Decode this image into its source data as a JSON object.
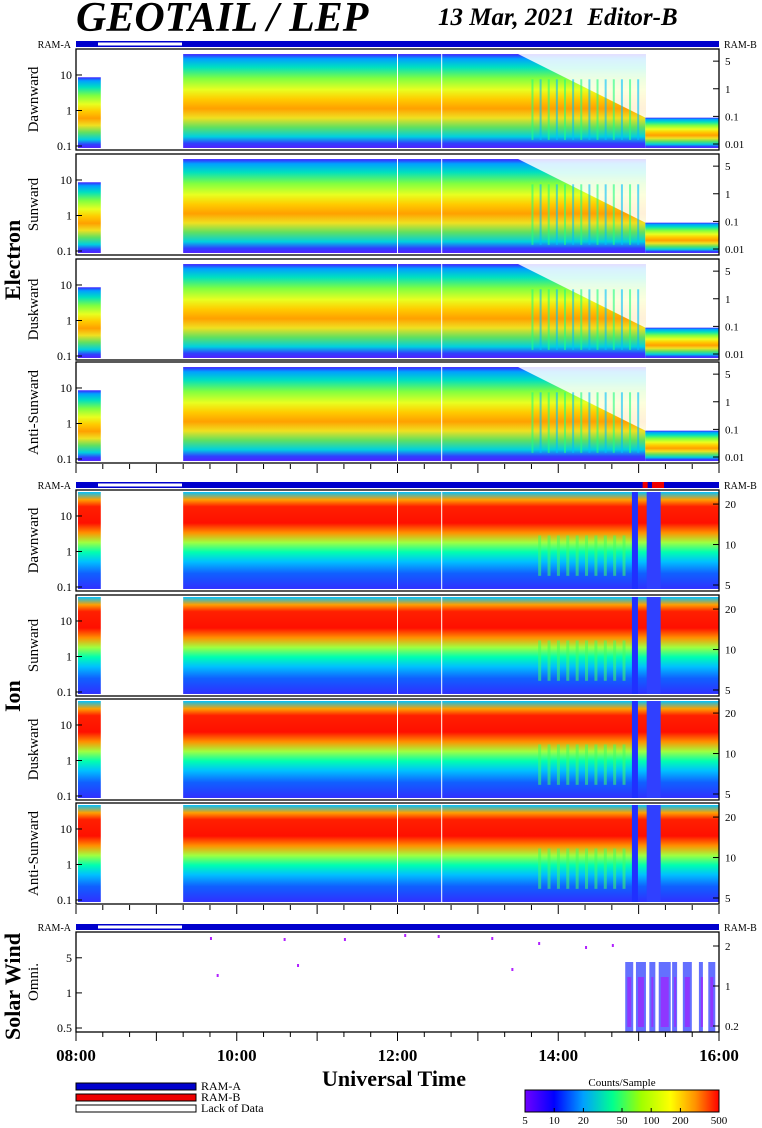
{
  "header": {
    "title": "GEOTAIL / LEP",
    "date": "13 Mar, 2021",
    "editor": "Editor-B"
  },
  "groups": {
    "electron": "Electron",
    "ion": "Ion",
    "solar_wind": "Solar Wind"
  },
  "ram": {
    "a": "RAM-A",
    "b": "RAM-B"
  },
  "panels": {
    "electron": [
      "Dawnward",
      "Sunward",
      "Duskward",
      "Anti-Sunward"
    ],
    "ion": [
      "Dawnward",
      "Sunward",
      "Duskward",
      "Anti-Sunward"
    ],
    "solar_wind": [
      "Omni."
    ]
  },
  "x_axis": {
    "label": "Universal Time",
    "ticks": [
      "08:00",
      "10:00",
      "12:00",
      "14:00",
      "16:00"
    ]
  },
  "legend": {
    "items": [
      {
        "label": "RAM-A",
        "color": "#0000cc"
      },
      {
        "label": "RAM-B",
        "color": "#ee0000"
      },
      {
        "label": "Lack of Data",
        "color": "#ffffff"
      }
    ]
  },
  "colorbar": {
    "title": "Counts/Sample",
    "ticks": [
      "5",
      "10",
      "20",
      "50",
      "100",
      "200",
      "500"
    ]
  },
  "chart_data": {
    "type": "heatmap",
    "x_range": [
      "08:00",
      "16:00"
    ],
    "data_gap": [
      "08:20",
      "09:20"
    ],
    "electron_y_left_ticks": [
      "0.1",
      "1",
      "10"
    ],
    "electron_y_right_ticks": [
      "0.01",
      "0.1",
      "1",
      "5"
    ],
    "ion_y_left_ticks": [
      "0.1",
      "1",
      "10"
    ],
    "ion_y_right_ticks": [
      "5",
      "10",
      "20"
    ],
    "sw_y_left_ticks": [
      "0.5",
      "1",
      "5"
    ],
    "sw_y_right_ticks": [
      "0.2",
      "1",
      "2"
    ],
    "color_scale": {
      "min": 5,
      "max": 500,
      "log": true
    },
    "vertical_markers": [
      "12:00",
      "12:33"
    ]
  }
}
